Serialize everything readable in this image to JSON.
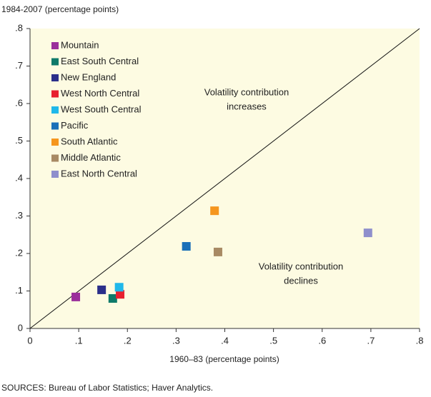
{
  "chart_data": {
    "type": "scatter",
    "title": "1984-2007 (percentage points)",
    "x_label": "1960–83 (percentage points)",
    "annotations": [
      [
        "Volatility contribution",
        "increases"
      ],
      [
        "Volatility contribution",
        "declines"
      ]
    ],
    "source": "SOURCES: Bureau of Labor Statistics; Haver Analytics.",
    "xlim": [
      0,
      0.8
    ],
    "ylim": [
      0,
      0.8
    ],
    "xticks": [
      0,
      {
        "value": 0.1,
        "label": ".1"
      },
      {
        "value": 0.2,
        "label": ".2"
      },
      {
        "value": 0.3,
        "label": ".3"
      },
      {
        "value": 0.4,
        "label": ".4"
      },
      {
        "value": 0.5,
        "label": ".5"
      },
      {
        "value": 0.6,
        "label": ".6"
      },
      {
        "value": 0.7,
        "label": ".7"
      },
      {
        "value": 0.8,
        "label": ".8"
      }
    ],
    "yticks": [
      0,
      {
        "value": 0.1,
        "label": ".1"
      },
      {
        "value": 0.2,
        "label": ".2"
      },
      {
        "value": 0.3,
        "label": ".3"
      },
      {
        "value": 0.4,
        "label": ".4"
      },
      {
        "value": 0.5,
        "label": ".5"
      },
      {
        "value": 0.6,
        "label": ".6"
      },
      {
        "value": 0.7,
        "label": ".7"
      },
      {
        "value": 0.8,
        "label": ".8"
      }
    ],
    "legend": "upper left",
    "series": [
      {
        "name": "Mountain",
        "color": "#9b2f9b",
        "x": [
          0.094
        ],
        "values": [
          0.084
        ]
      },
      {
        "name": "East South Central",
        "color": "#0f7a6a",
        "x": [
          0.17
        ],
        "values": [
          0.08
        ]
      },
      {
        "name": "New England",
        "color": "#2b2f8a",
        "x": [
          0.147
        ],
        "values": [
          0.103
        ]
      },
      {
        "name": "West North Central",
        "color": "#e8202f",
        "x": [
          0.185
        ],
        "values": [
          0.091
        ]
      },
      {
        "name": "West South Central",
        "color": "#20b8ea",
        "x": [
          0.183
        ],
        "values": [
          0.11
        ]
      },
      {
        "name": "Pacific",
        "color": "#1a6fb8",
        "x": [
          0.321
        ],
        "values": [
          0.219
        ]
      },
      {
        "name": "South Atlantic",
        "color": "#f5961e",
        "x": [
          0.379
        ],
        "values": [
          0.314
        ]
      },
      {
        "name": "Middle Atlantic",
        "color": "#a88a64",
        "x": [
          0.386
        ],
        "values": [
          0.204
        ]
      },
      {
        "name": "East North Central",
        "color": "#8f8fcc",
        "x": [
          0.694
        ],
        "values": [
          0.255
        ]
      }
    ]
  }
}
